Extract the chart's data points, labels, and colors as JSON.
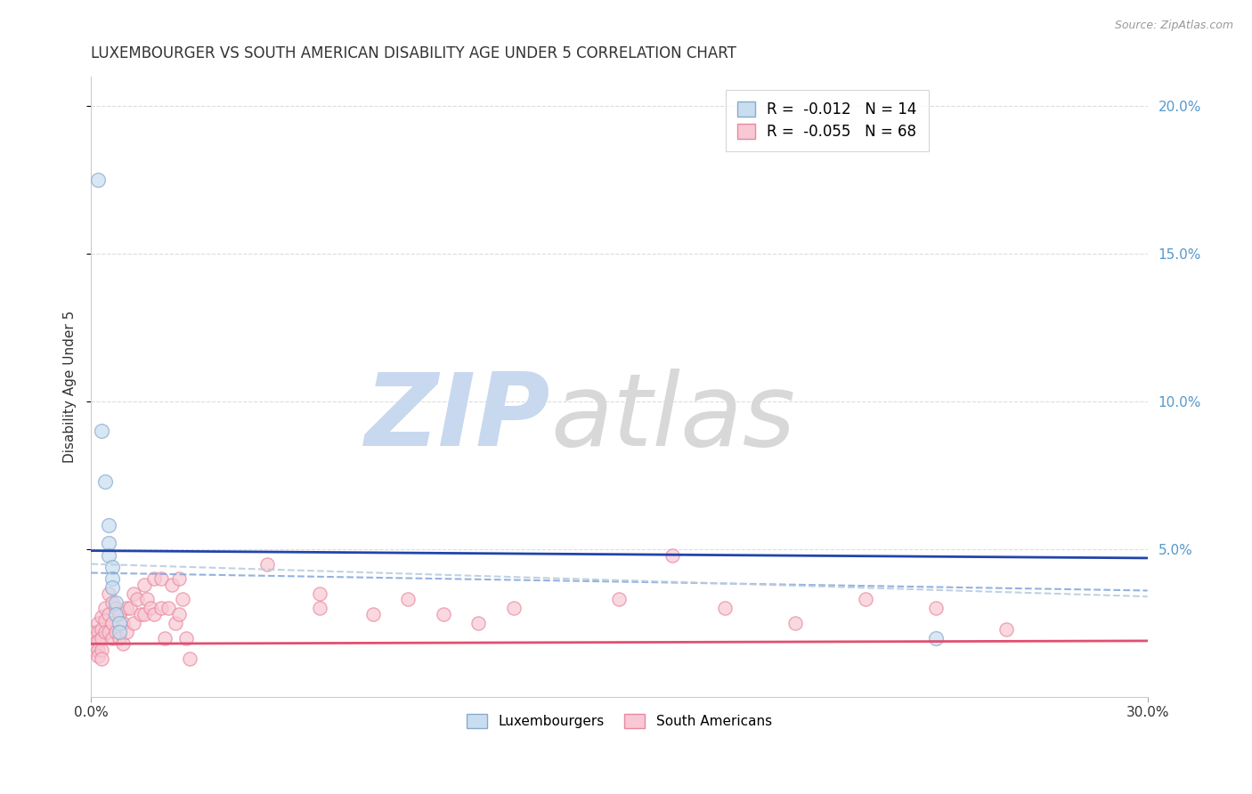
{
  "title": "LUXEMBOURGER VS SOUTH AMERICAN DISABILITY AGE UNDER 5 CORRELATION CHART",
  "source": "Source: ZipAtlas.com",
  "ylabel": "Disability Age Under 5",
  "xlim": [
    0.0,
    0.3
  ],
  "ylim": [
    0.0,
    0.21
  ],
  "yticks": [
    0.05,
    0.1,
    0.15,
    0.2
  ],
  "ytick_labels": [
    "5.0%",
    "10.0%",
    "15.0%",
    "20.0%"
  ],
  "xticks": [
    0.0,
    0.3
  ],
  "xtick_labels": [
    "0.0%",
    "30.0%"
  ],
  "luxembourger_scatter": [
    [
      0.002,
      0.175
    ],
    [
      0.003,
      0.09
    ],
    [
      0.004,
      0.073
    ],
    [
      0.005,
      0.058
    ],
    [
      0.005,
      0.052
    ],
    [
      0.005,
      0.048
    ],
    [
      0.006,
      0.044
    ],
    [
      0.006,
      0.04
    ],
    [
      0.006,
      0.037
    ],
    [
      0.007,
      0.032
    ],
    [
      0.007,
      0.028
    ],
    [
      0.008,
      0.025
    ],
    [
      0.008,
      0.022
    ],
    [
      0.24,
      0.02
    ]
  ],
  "south_american_scatter": [
    [
      0.001,
      0.022
    ],
    [
      0.001,
      0.02
    ],
    [
      0.001,
      0.018
    ],
    [
      0.001,
      0.016
    ],
    [
      0.002,
      0.025
    ],
    [
      0.002,
      0.022
    ],
    [
      0.002,
      0.019
    ],
    [
      0.002,
      0.016
    ],
    [
      0.002,
      0.014
    ],
    [
      0.003,
      0.027
    ],
    [
      0.003,
      0.023
    ],
    [
      0.003,
      0.02
    ],
    [
      0.003,
      0.016
    ],
    [
      0.003,
      0.013
    ],
    [
      0.004,
      0.03
    ],
    [
      0.004,
      0.026
    ],
    [
      0.004,
      0.022
    ],
    [
      0.005,
      0.035
    ],
    [
      0.005,
      0.028
    ],
    [
      0.005,
      0.022
    ],
    [
      0.006,
      0.032
    ],
    [
      0.006,
      0.025
    ],
    [
      0.006,
      0.02
    ],
    [
      0.007,
      0.03
    ],
    [
      0.007,
      0.022
    ],
    [
      0.008,
      0.028
    ],
    [
      0.008,
      0.02
    ],
    [
      0.009,
      0.025
    ],
    [
      0.009,
      0.018
    ],
    [
      0.01,
      0.03
    ],
    [
      0.01,
      0.022
    ],
    [
      0.011,
      0.03
    ],
    [
      0.012,
      0.035
    ],
    [
      0.012,
      0.025
    ],
    [
      0.013,
      0.033
    ],
    [
      0.014,
      0.028
    ],
    [
      0.015,
      0.038
    ],
    [
      0.015,
      0.028
    ],
    [
      0.016,
      0.033
    ],
    [
      0.017,
      0.03
    ],
    [
      0.018,
      0.04
    ],
    [
      0.018,
      0.028
    ],
    [
      0.02,
      0.04
    ],
    [
      0.02,
      0.03
    ],
    [
      0.021,
      0.02
    ],
    [
      0.022,
      0.03
    ],
    [
      0.023,
      0.038
    ],
    [
      0.024,
      0.025
    ],
    [
      0.025,
      0.04
    ],
    [
      0.025,
      0.028
    ],
    [
      0.026,
      0.033
    ],
    [
      0.027,
      0.02
    ],
    [
      0.028,
      0.013
    ],
    [
      0.05,
      0.045
    ],
    [
      0.065,
      0.035
    ],
    [
      0.065,
      0.03
    ],
    [
      0.08,
      0.028
    ],
    [
      0.09,
      0.033
    ],
    [
      0.1,
      0.028
    ],
    [
      0.11,
      0.025
    ],
    [
      0.12,
      0.03
    ],
    [
      0.15,
      0.033
    ],
    [
      0.165,
      0.048
    ],
    [
      0.18,
      0.03
    ],
    [
      0.2,
      0.025
    ],
    [
      0.22,
      0.033
    ],
    [
      0.24,
      0.03
    ],
    [
      0.26,
      0.023
    ]
  ],
  "lux_line_x": [
    0.0,
    0.3
  ],
  "lux_line_y": [
    0.0495,
    0.047
  ],
  "sa_line_x": [
    0.0,
    0.3
  ],
  "sa_line_y": [
    0.018,
    0.019
  ],
  "lux_trend_x": [
    0.0,
    0.3
  ],
  "lux_trend_y": [
    0.042,
    0.036
  ],
  "sa_trend_x": [
    0.0,
    0.3
  ],
  "sa_trend_y": [
    0.045,
    0.034
  ],
  "lux_color": "#aaccee",
  "sa_color": "#f4b8c8",
  "lux_line_color": "#2244aa",
  "sa_line_color": "#e05070",
  "lux_trend_color": "#88aadd",
  "sa_trend_color": "#bbccdd",
  "background_color": "#ffffff",
  "grid_color": "#dddddd",
  "title_fontsize": 12,
  "axis_label_fontsize": 11
}
